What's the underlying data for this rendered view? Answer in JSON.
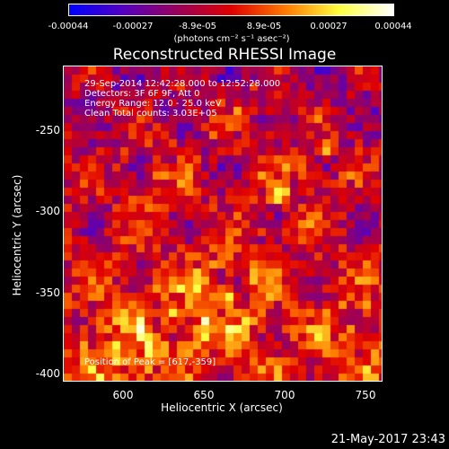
{
  "colorbar": {
    "ticks": [
      "-0.00044",
      "-0.00027",
      "-8.9e-05",
      "8.9e-05",
      "0.00027",
      "0.00044"
    ],
    "unit": "(photons cm⁻² s⁻¹ asec⁻²)",
    "colors": [
      "#0000ff",
      "#5500c0",
      "#9a005a",
      "#e00000",
      "#ff7a00",
      "#ffff40",
      "#ffffff"
    ]
  },
  "plot": {
    "title": "Reconstructed RHESSI Image",
    "annotations": [
      "29-Sep-2014 12:42:28.000 to 12:52:28.000",
      "Detectors: 3F 6F 9F, Att 0",
      "Energy Range: 12.0 - 25.0 keV",
      "Clean     Total counts: 3.03E+05"
    ],
    "peak_label": "Position of Peak = [617,-359]",
    "x_axis": {
      "label": "Heliocentric X (arcsec)",
      "ticks": [
        "600",
        "650",
        "700",
        "750"
      ]
    },
    "y_axis": {
      "label": "Heliocentric Y (arcsec)",
      "ticks": [
        "-250",
        "-300",
        "-350",
        "-400"
      ]
    }
  },
  "footer": {
    "timestamp": "21-May-2017 23:43"
  }
}
